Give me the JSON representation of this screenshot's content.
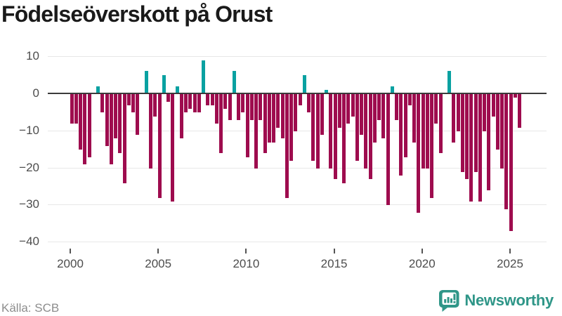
{
  "header": {
    "title": "Födelseöverskott på Orust"
  },
  "footer": {
    "source": "Källa: SCB",
    "brand": "Newsworthy"
  },
  "colors": {
    "negative_bar": "#9e0c4e",
    "positive_bar": "#09a1a1",
    "zero_line": "#3b3b3b",
    "grid_line": "#e7e7e7",
    "axis_text": "#4d4d4d",
    "title_text": "#1a1a1a",
    "source_text": "#8d8d8d",
    "brand_teal": "#2f9688"
  },
  "chart_data": {
    "type": "bar",
    "title": "Födelseöverskott på Orust",
    "xlabel": "",
    "ylabel": "",
    "ylim": [
      -40,
      10
    ],
    "y_ticks": [
      10,
      0,
      -10,
      -20,
      -30,
      -40
    ],
    "y_tick_labels": [
      "10",
      "0",
      "−10",
      "−20",
      "−30",
      "−40"
    ],
    "x_tick_labels": [
      "2000",
      "2005",
      "2010",
      "2015",
      "2020",
      "2025"
    ],
    "grid": true,
    "legend": "none",
    "categories": [
      "2000Q1",
      "2000Q2",
      "2000Q3",
      "2000Q4",
      "2001Q1",
      "2001Q2",
      "2001Q3",
      "2001Q4",
      "2002Q1",
      "2002Q2",
      "2002Q3",
      "2002Q4",
      "2003Q1",
      "2003Q2",
      "2003Q3",
      "2003Q4",
      "2004Q1",
      "2004Q2",
      "2004Q3",
      "2004Q4",
      "2005Q1",
      "2005Q2",
      "2005Q3",
      "2005Q4",
      "2006Q1",
      "2006Q2",
      "2006Q3",
      "2006Q4",
      "2007Q1",
      "2007Q2",
      "2007Q3",
      "2007Q4",
      "2008Q1",
      "2008Q2",
      "2008Q3",
      "2008Q4",
      "2009Q1",
      "2009Q2",
      "2009Q3",
      "2009Q4",
      "2010Q1",
      "2010Q2",
      "2010Q3",
      "2010Q4",
      "2011Q1",
      "2011Q2",
      "2011Q3",
      "2011Q4",
      "2012Q1",
      "2012Q2",
      "2012Q3",
      "2012Q4",
      "2013Q1",
      "2013Q2",
      "2013Q3",
      "2013Q4",
      "2014Q1",
      "2014Q2",
      "2014Q3",
      "2014Q4",
      "2015Q1",
      "2015Q2",
      "2015Q3",
      "2015Q4",
      "2016Q1",
      "2016Q2",
      "2016Q3",
      "2016Q4",
      "2017Q1",
      "2017Q2",
      "2017Q3",
      "2017Q4",
      "2018Q1",
      "2018Q2",
      "2018Q3",
      "2018Q4",
      "2019Q1",
      "2019Q2",
      "2019Q3",
      "2019Q4",
      "2020Q1",
      "2020Q2",
      "2020Q3",
      "2020Q4",
      "2021Q1",
      "2021Q2",
      "2021Q3",
      "2021Q4",
      "2022Q1",
      "2022Q2",
      "2022Q3",
      "2022Q4",
      "2023Q1",
      "2023Q2",
      "2023Q3",
      "2023Q4",
      "2024Q1",
      "2024Q2",
      "2024Q3",
      "2024Q4",
      "2025Q1",
      "2025Q2",
      "2025Q3"
    ],
    "values": [
      -8,
      -8,
      -15,
      -19,
      -17,
      0,
      2,
      -5,
      -14,
      -19,
      -12,
      -16,
      -24,
      -3,
      -5,
      -11,
      0,
      6,
      -20,
      -6,
      -28,
      5,
      -2,
      -29,
      2,
      -12,
      -5,
      -4,
      -5,
      -5,
      9,
      -3,
      -3,
      -8,
      -16,
      -4,
      -7,
      6,
      -7,
      -5,
      -17,
      -7,
      -20,
      -7,
      -16,
      -13,
      -13,
      -9,
      -12,
      -28,
      -18,
      -10,
      -3,
      5,
      -5,
      -18,
      -20,
      -11,
      1,
      -20,
      -23,
      -9,
      -24,
      -8,
      -6,
      -18,
      -11,
      -20,
      -23,
      -13,
      -7,
      -12,
      -30,
      2,
      -7,
      -22,
      -17,
      -3,
      -13,
      -32,
      -20,
      -20,
      -28,
      -8,
      -16,
      0,
      6,
      -13,
      -10,
      -21,
      -23,
      -29,
      -21,
      -29,
      -10,
      -26,
      -6,
      -15,
      -20,
      -31,
      -37,
      -1,
      -9
    ]
  }
}
